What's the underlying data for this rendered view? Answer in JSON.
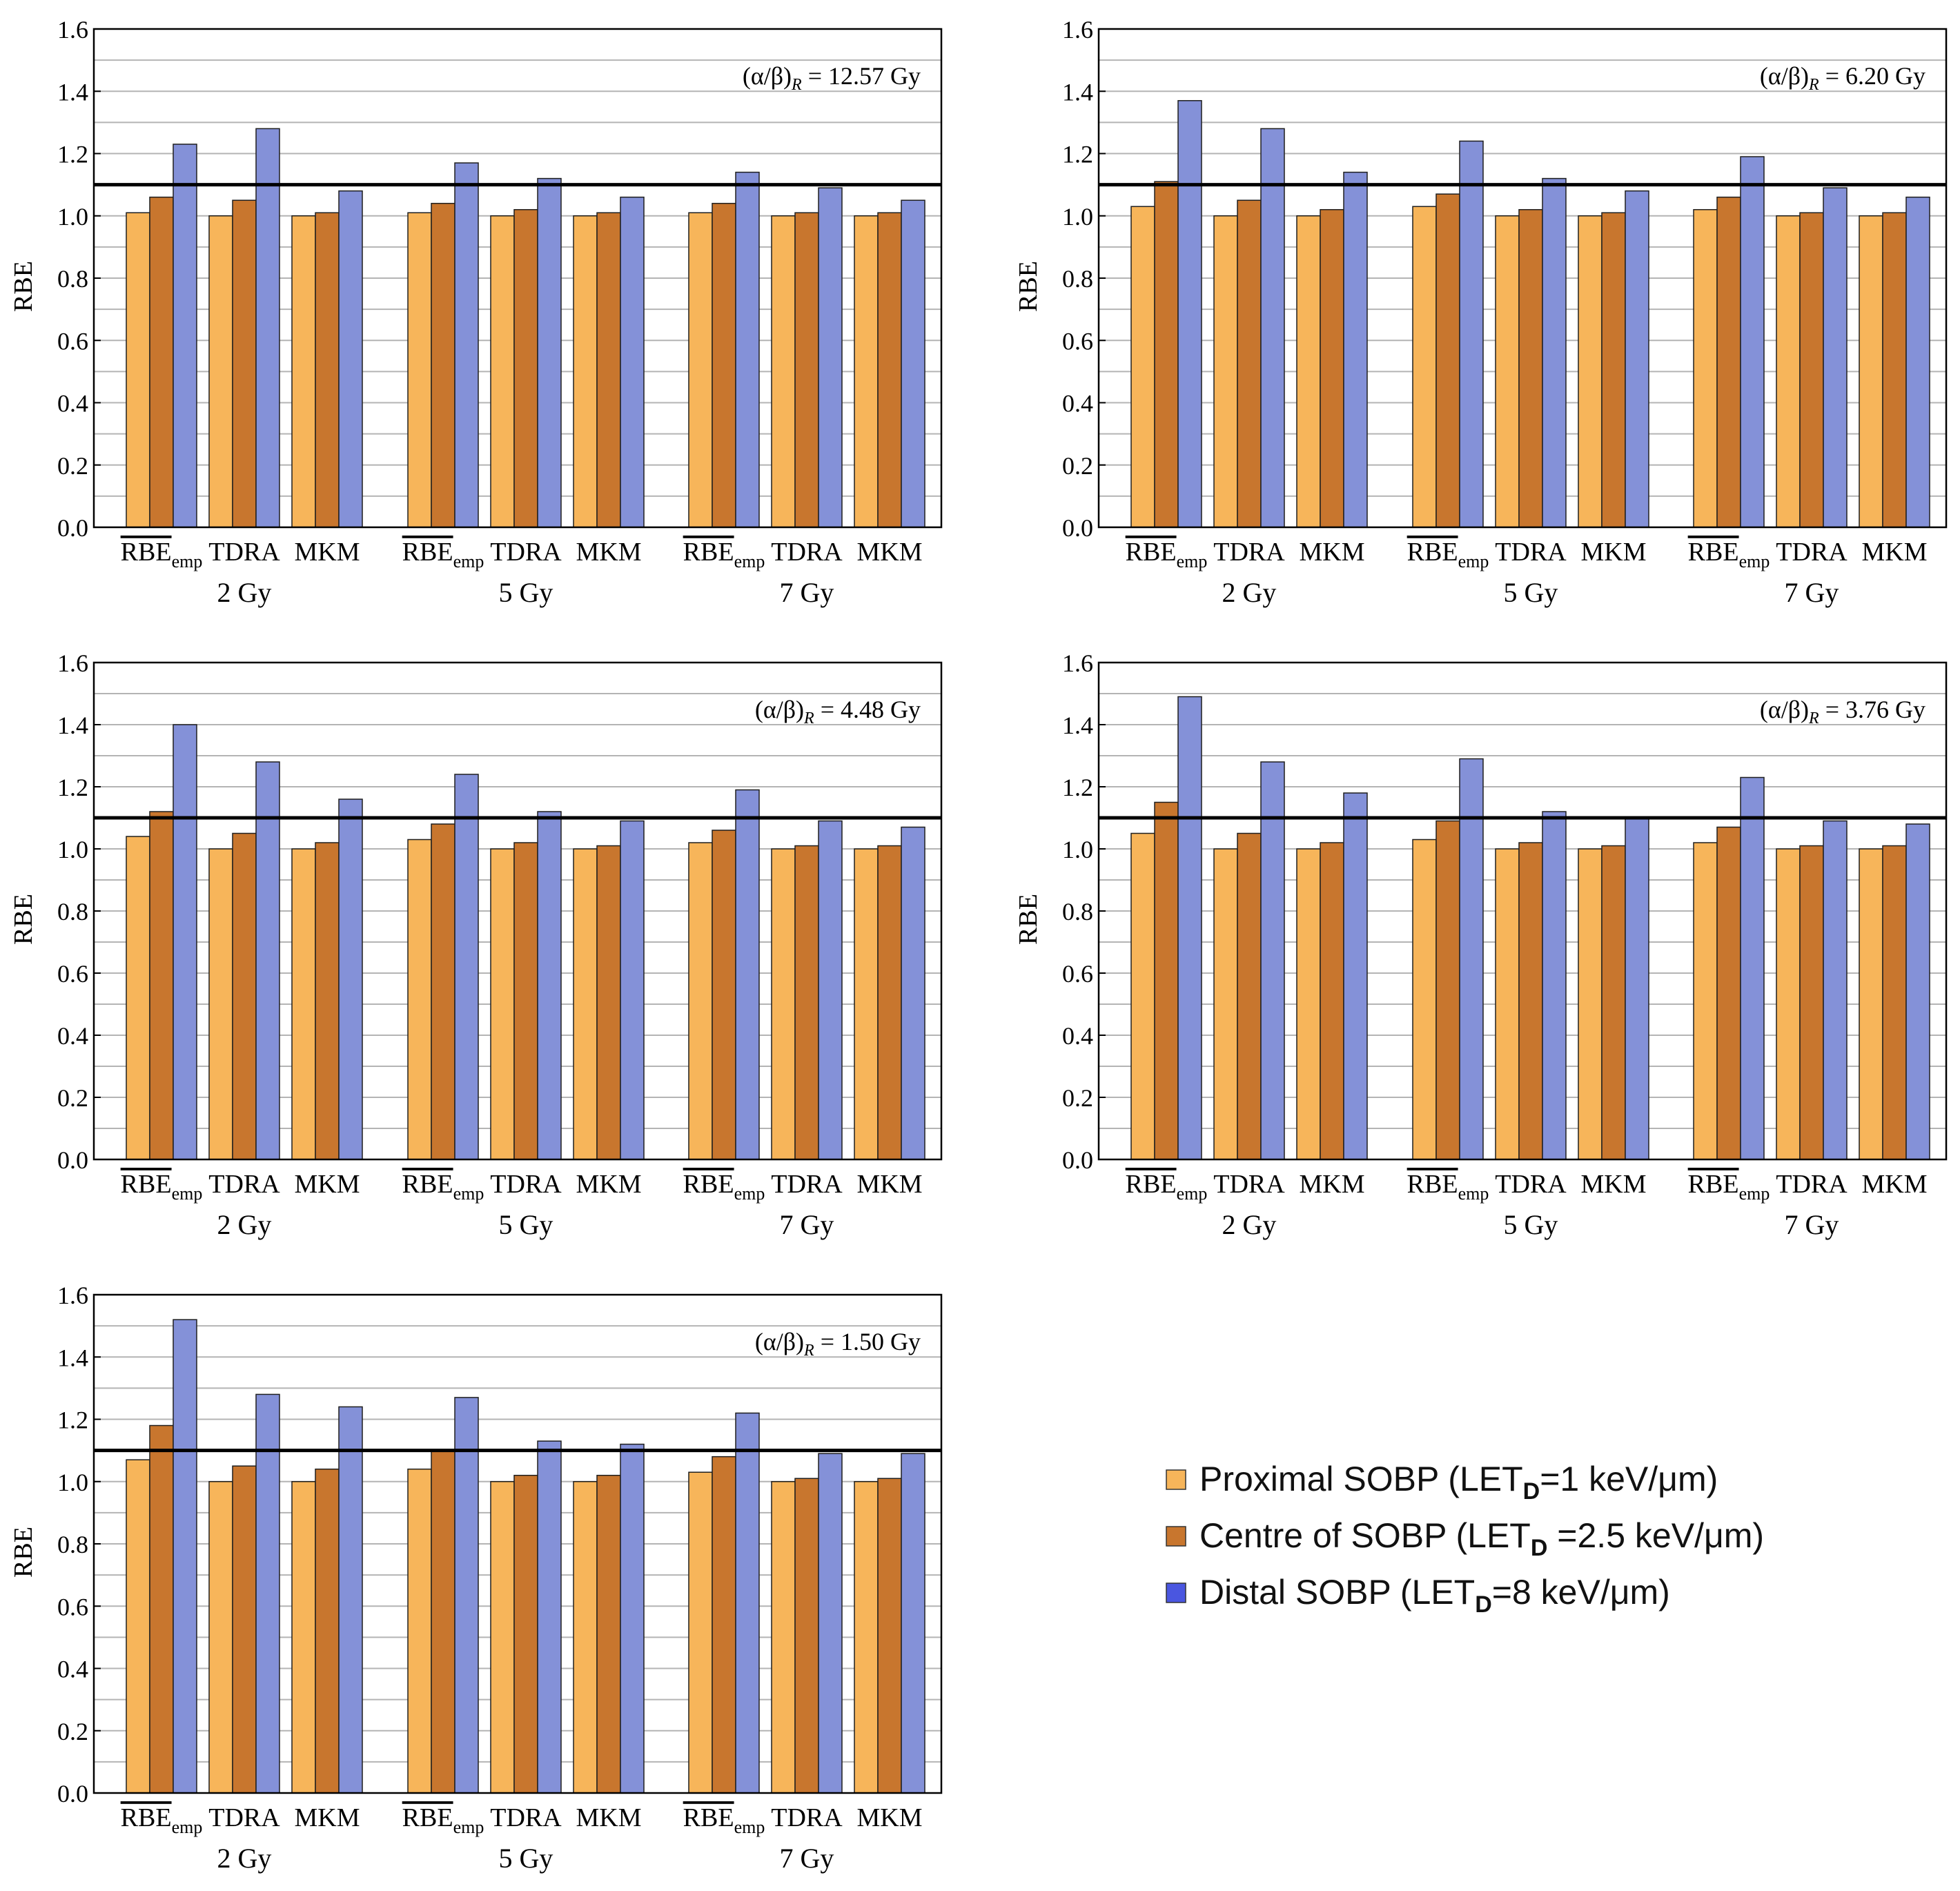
{
  "colors": {
    "proximal": "#f7b55a",
    "centre": "#c8762e",
    "distal": "#8491d8",
    "axis": "#000000",
    "grid": "#b4b4b4",
    "reference_line": "#000000"
  },
  "legend": {
    "items": [
      {
        "label_pre": "Proximal SOBP (LET",
        "sub": "D",
        "label_post": "=1 keV/μm)",
        "swatch": "#f7b55a"
      },
      {
        "label_pre": "Centre of SOBP (LET",
        "sub": "D",
        "label_post": " =2.5 keV/μm)",
        "swatch": "#c8762e"
      },
      {
        "label_pre": "Distal SOBP (LET",
        "sub": "D",
        "label_post": "=8 keV/μm)",
        "swatch": "#4a56e0"
      }
    ]
  },
  "chart_data": [
    {
      "type": "bar",
      "ylabel": "RBE",
      "ylim": [
        0,
        1.6
      ],
      "yticks": [
        "0.0",
        "0.2",
        "0.4",
        "0.6",
        "0.8",
        "1.0",
        "1.2",
        "1.4",
        "1.6"
      ],
      "reference_line": 1.1,
      "annotation": {
        "prefix": "(α/β)",
        "sub": "R",
        "suffix": " = 12.57 Gy"
      },
      "dose_groups": [
        "2 Gy",
        "5 Gy",
        "7 Gy"
      ],
      "models": [
        {
          "main": "RBE",
          "sub": "emp",
          "overline": true
        },
        {
          "main": "TDRA"
        },
        {
          "main": "MKM"
        }
      ],
      "series_names": [
        "Proximal SOBP",
        "Centre of SOBP",
        "Distal SOBP"
      ],
      "values": [
        [
          [
            1.01,
            1.06,
            1.23
          ],
          [
            1.0,
            1.05,
            1.28
          ],
          [
            1.0,
            1.01,
            1.08
          ]
        ],
        [
          [
            1.01,
            1.04,
            1.17
          ],
          [
            1.0,
            1.02,
            1.12
          ],
          [
            1.0,
            1.01,
            1.06
          ]
        ],
        [
          [
            1.01,
            1.04,
            1.14
          ],
          [
            1.0,
            1.01,
            1.09
          ],
          [
            1.0,
            1.01,
            1.05
          ]
        ]
      ]
    },
    {
      "type": "bar",
      "ylabel": "RBE",
      "ylim": [
        0,
        1.6
      ],
      "yticks": [
        "0.0",
        "0.2",
        "0.4",
        "0.6",
        "0.8",
        "1.0",
        "1.2",
        "1.4",
        "1.6"
      ],
      "reference_line": 1.1,
      "annotation": {
        "prefix": "(α/β)",
        "sub": "R",
        "suffix": " = 6.20 Gy"
      },
      "dose_groups": [
        "2 Gy",
        "5 Gy",
        "7 Gy"
      ],
      "models": [
        {
          "main": "RBE",
          "sub": "emp",
          "overline": true
        },
        {
          "main": "TDRA"
        },
        {
          "main": "MKM"
        }
      ],
      "series_names": [
        "Proximal SOBP",
        "Centre of SOBP",
        "Distal SOBP"
      ],
      "values": [
        [
          [
            1.03,
            1.11,
            1.37
          ],
          [
            1.0,
            1.05,
            1.28
          ],
          [
            1.0,
            1.02,
            1.14
          ]
        ],
        [
          [
            1.03,
            1.07,
            1.24
          ],
          [
            1.0,
            1.02,
            1.12
          ],
          [
            1.0,
            1.01,
            1.08
          ]
        ],
        [
          [
            1.02,
            1.06,
            1.19
          ],
          [
            1.0,
            1.01,
            1.09
          ],
          [
            1.0,
            1.01,
            1.06
          ]
        ]
      ]
    },
    {
      "type": "bar",
      "ylabel": "RBE",
      "ylim": [
        0,
        1.6
      ],
      "yticks": [
        "0.0",
        "0.2",
        "0.4",
        "0.6",
        "0.8",
        "1.0",
        "1.2",
        "1.4",
        "1.6"
      ],
      "reference_line": 1.1,
      "annotation": {
        "prefix": "(α/β)",
        "sub": "R",
        "suffix": " = 4.48 Gy"
      },
      "dose_groups": [
        "2 Gy",
        "5 Gy",
        "7 Gy"
      ],
      "models": [
        {
          "main": "RBE",
          "sub": "emp",
          "overline": true
        },
        {
          "main": "TDRA"
        },
        {
          "main": "MKM"
        }
      ],
      "series_names": [
        "Proximal SOBP",
        "Centre of SOBP",
        "Distal SOBP"
      ],
      "values": [
        [
          [
            1.04,
            1.12,
            1.4
          ],
          [
            1.0,
            1.05,
            1.28
          ],
          [
            1.0,
            1.02,
            1.16
          ]
        ],
        [
          [
            1.03,
            1.08,
            1.24
          ],
          [
            1.0,
            1.02,
            1.12
          ],
          [
            1.0,
            1.01,
            1.09
          ]
        ],
        [
          [
            1.02,
            1.06,
            1.19
          ],
          [
            1.0,
            1.01,
            1.09
          ],
          [
            1.0,
            1.01,
            1.07
          ]
        ]
      ]
    },
    {
      "type": "bar",
      "ylabel": "RBE",
      "ylim": [
        0,
        1.6
      ],
      "yticks": [
        "0.0",
        "0.2",
        "0.4",
        "0.6",
        "0.8",
        "1.0",
        "1.2",
        "1.4",
        "1.6"
      ],
      "reference_line": 1.1,
      "annotation": {
        "prefix": "(α/β)",
        "sub": "R",
        "suffix": " = 3.76 Gy"
      },
      "dose_groups": [
        "2 Gy",
        "5 Gy",
        "7 Gy"
      ],
      "models": [
        {
          "main": "RBE",
          "sub": "emp",
          "overline": true
        },
        {
          "main": "TDRA"
        },
        {
          "main": "MKM"
        }
      ],
      "series_names": [
        "Proximal SOBP",
        "Centre of SOBP",
        "Distal SOBP"
      ],
      "values": [
        [
          [
            1.05,
            1.15,
            1.49
          ],
          [
            1.0,
            1.05,
            1.28
          ],
          [
            1.0,
            1.02,
            1.18
          ]
        ],
        [
          [
            1.03,
            1.09,
            1.29
          ],
          [
            1.0,
            1.02,
            1.12
          ],
          [
            1.0,
            1.01,
            1.1
          ]
        ],
        [
          [
            1.02,
            1.07,
            1.23
          ],
          [
            1.0,
            1.01,
            1.09
          ],
          [
            1.0,
            1.01,
            1.08
          ]
        ]
      ]
    },
    {
      "type": "bar",
      "ylabel": "RBE",
      "ylim": [
        0,
        1.6
      ],
      "yticks": [
        "0.0",
        "0.2",
        "0.4",
        "0.6",
        "0.8",
        "1.0",
        "1.2",
        "1.4",
        "1.6"
      ],
      "reference_line": 1.1,
      "annotation": {
        "prefix": "(α/β)",
        "sub": "R",
        "suffix": " = 1.50 Gy"
      },
      "dose_groups": [
        "2 Gy",
        "5 Gy",
        "7 Gy"
      ],
      "models": [
        {
          "main": "RBE",
          "sub": "emp",
          "overline": true
        },
        {
          "main": "TDRA"
        },
        {
          "main": "MKM"
        }
      ],
      "series_names": [
        "Proximal SOBP",
        "Centre of SOBP",
        "Distal SOBP"
      ],
      "values": [
        [
          [
            1.07,
            1.18,
            1.52
          ],
          [
            1.0,
            1.05,
            1.28
          ],
          [
            1.0,
            1.04,
            1.24
          ]
        ],
        [
          [
            1.04,
            1.1,
            1.27
          ],
          [
            1.0,
            1.02,
            1.13
          ],
          [
            1.0,
            1.02,
            1.12
          ]
        ],
        [
          [
            1.03,
            1.08,
            1.22
          ],
          [
            1.0,
            1.01,
            1.09
          ],
          [
            1.0,
            1.01,
            1.09
          ]
        ]
      ]
    }
  ]
}
